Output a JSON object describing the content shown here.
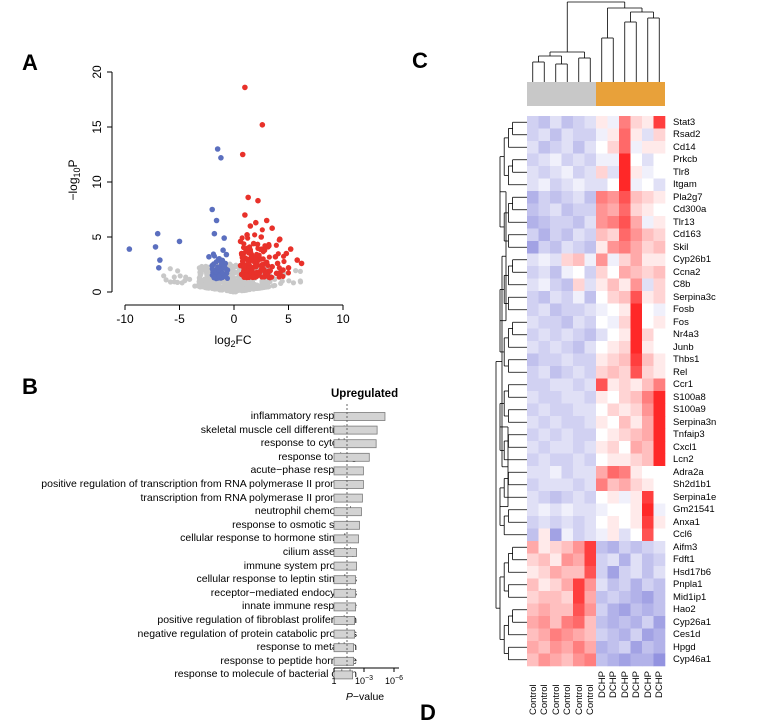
{
  "panels": {
    "a": "A",
    "b": "B",
    "c": "C",
    "d": "D"
  },
  "chart_data": [
    {
      "type": "scatter",
      "name": "volcano",
      "title": "",
      "xlabel": "log2FC",
      "ylabel": "−log10P",
      "xlim": [
        -10,
        10
      ],
      "ylim": [
        0,
        20
      ],
      "xticks": [
        -10,
        -5,
        0,
        5,
        10
      ],
      "yticks": [
        0,
        5,
        10,
        15,
        20
      ],
      "colors": {
        "down": "#5b6fbf",
        "up": "#e8312a",
        "ns": "#c8c8c8"
      },
      "series": [
        {
          "name": "up",
          "points": [
            [
              1.0,
              18.6
            ],
            [
              2.6,
              15.2
            ],
            [
              0.8,
              12.5
            ],
            [
              1.3,
              8.6
            ],
            [
              2.2,
              8.3
            ],
            [
              1.0,
              7.0
            ],
            [
              3.0,
              6.5
            ],
            [
              1.5,
              6.0
            ],
            [
              2.0,
              6.3
            ],
            [
              3.5,
              5.8
            ],
            [
              1.2,
              5.2
            ],
            [
              2.5,
              5.0
            ],
            [
              4.2,
              4.8
            ],
            [
              0.6,
              4.6
            ],
            [
              1.8,
              4.4
            ],
            [
              3.2,
              4.2
            ],
            [
              5.2,
              3.9
            ],
            [
              1.1,
              3.9
            ],
            [
              2.8,
              3.8
            ],
            [
              4.8,
              3.5
            ],
            [
              0.7,
              3.5
            ],
            [
              1.6,
              3.4
            ],
            [
              2.2,
              3.3
            ],
            [
              3.8,
              3.2
            ],
            [
              1.0,
              3.1
            ],
            [
              2.5,
              3.0
            ],
            [
              5.8,
              2.9
            ],
            [
              6.2,
              2.6
            ],
            [
              0.8,
              2.8
            ],
            [
              1.9,
              2.7
            ],
            [
              3.0,
              2.7
            ],
            [
              4.0,
              2.6
            ],
            [
              1.3,
              2.5
            ],
            [
              2.0,
              2.4
            ],
            [
              0.6,
              2.4
            ],
            [
              3.5,
              2.3
            ],
            [
              1.7,
              2.2
            ],
            [
              2.6,
              2.1
            ],
            [
              4.5,
              2.0
            ],
            [
              1.1,
              2.0
            ],
            [
              0.9,
              1.9
            ],
            [
              2.3,
              1.8
            ],
            [
              3.2,
              1.9
            ],
            [
              5.0,
              2.2
            ],
            [
              1.5,
              1.7
            ],
            [
              0.7,
              1.6
            ],
            [
              2.0,
              1.5
            ],
            [
              2.9,
              1.6
            ],
            [
              3.9,
              1.7
            ],
            [
              1.2,
              1.4
            ]
          ]
        },
        {
          "name": "down",
          "points": [
            [
              -1.5,
              13.0
            ],
            [
              -1.2,
              12.2
            ],
            [
              -9.6,
              3.9
            ],
            [
              -7.0,
              5.3
            ],
            [
              -7.2,
              4.1
            ],
            [
              -6.8,
              2.9
            ],
            [
              -6.9,
              2.2
            ],
            [
              -5.0,
              4.6
            ],
            [
              -2.0,
              7.5
            ],
            [
              -1.6,
              6.5
            ],
            [
              -1.8,
              5.3
            ],
            [
              -0.9,
              4.9
            ],
            [
              -1.0,
              3.8
            ],
            [
              -2.3,
              3.2
            ],
            [
              -0.7,
              3.4
            ],
            [
              -1.4,
              3.0
            ],
            [
              -0.8,
              2.6
            ],
            [
              -2.0,
              2.4
            ],
            [
              -1.2,
              2.2
            ],
            [
              -0.6,
              2.0
            ],
            [
              -1.5,
              1.8
            ],
            [
              -0.8,
              1.6
            ],
            [
              -1.1,
              1.5
            ]
          ]
        },
        {
          "name": "ns",
          "points": "cloud"
        }
      ]
    },
    {
      "type": "bar",
      "name": "go-enrichment",
      "title": "Upregulated",
      "xlabel": "P-value",
      "xticks": [
        "1",
        "10−3",
        "10−6"
      ],
      "threshold": 0.05,
      "categories": [
        "inflammatory response",
        "skeletal muscle cell differentiation",
        "response to cytokine",
        "response to drug",
        "acute−phase response",
        "positive regulation of transcription from RNA polymerase II promoter",
        "transcription from RNA polymerase II promoter",
        "neutrophil chemotaxis",
        "response to osmotic stress",
        "cellular response to hormone stimulus",
        "cilium assembly",
        "immune system process",
        "cellular response to leptin stimulus",
        "receptor−mediated endocytosis",
        "innate immune response",
        "positive regulation of fibroblast proliferation",
        "negative regulation of protein catabolic process",
        "response to metal ion",
        "response to peptide hormone",
        "response to molecule of bacterial origin"
      ],
      "values": [
        5.2,
        4.4,
        4.3,
        3.6,
        3.0,
        3.0,
        2.9,
        2.8,
        2.6,
        2.5,
        2.3,
        2.3,
        2.2,
        2.2,
        2.2,
        2.1,
        2.1,
        2.0,
        2.0,
        1.9
      ]
    },
    {
      "type": "heatmap",
      "name": "gene-heatmap",
      "samples": [
        "Control",
        "Control",
        "Control",
        "Control",
        "Control",
        "Control",
        "DCHP",
        "DCHP",
        "DCHP",
        "DCHP",
        "DCHP",
        "DCHP"
      ],
      "groups": [
        {
          "name": "Control",
          "color": "#c8c8c8"
        },
        {
          "name": "DCHP",
          "color": "#e8a13a"
        }
      ],
      "genes": [
        "Stat3",
        "Rsad2",
        "Cd14",
        "Prkcb",
        "Tlr8",
        "Itgam",
        "Pla2g7",
        "Cd300a",
        "Tlr13",
        "Cd163",
        "Skil",
        "Cyp26b1",
        "Ccna2",
        "C8b",
        "Serpina3c",
        "Fosb",
        "Fos",
        "Nr4a3",
        "Junb",
        "Thbs1",
        "Rel",
        "Ccr1",
        "S100a8",
        "S100a9",
        "Serpina3n",
        "Tnfaip3",
        "Cxcl1",
        "Lcn2",
        "Adra2a",
        "Sh2d1b1",
        "Serpina1e",
        "Gm21541",
        "Anxa1",
        "Ccl6",
        "Aifm3",
        "Fdft1",
        "Hsd17b6",
        "Pnpla1",
        "Mid1ip1",
        "Hao2",
        "Cyp26a1",
        "Ces1d",
        "Hpgd",
        "Cyp46a1"
      ],
      "values": [
        [
          -0.3,
          -0.4,
          -0.2,
          -0.4,
          -0.3,
          -0.2,
          0.1,
          -0.1,
          0.6,
          0.2,
          0.1,
          0.9
        ],
        [
          -0.3,
          -0.2,
          -0.4,
          -0.2,
          -0.3,
          -0.3,
          -0.1,
          0.1,
          0.7,
          0.1,
          -0.2,
          0.2
        ],
        [
          -0.2,
          -0.4,
          -0.3,
          -0.2,
          -0.4,
          -0.2,
          0.0,
          0.2,
          0.7,
          -0.1,
          0.1,
          0.1
        ],
        [
          -0.3,
          -0.2,
          -0.1,
          -0.3,
          -0.2,
          -0.3,
          -0.1,
          -0.1,
          1.0,
          0.0,
          -0.2,
          0.0
        ],
        [
          -0.2,
          -0.3,
          -0.2,
          -0.1,
          -0.3,
          -0.2,
          0.2,
          -0.2,
          1.0,
          0.1,
          -0.1,
          0.0
        ],
        [
          -0.2,
          -0.1,
          -0.3,
          -0.2,
          -0.1,
          -0.2,
          -0.2,
          0.0,
          1.0,
          -0.1,
          0.0,
          -0.2
        ],
        [
          -0.5,
          -0.3,
          -0.4,
          -0.3,
          -0.2,
          -0.4,
          0.6,
          0.5,
          0.8,
          0.3,
          0.2,
          0.1
        ],
        [
          -0.4,
          -0.3,
          -0.2,
          -0.4,
          -0.3,
          -0.3,
          0.5,
          0.4,
          0.7,
          0.2,
          0.1,
          0.0
        ],
        [
          -0.5,
          -0.4,
          -0.3,
          -0.3,
          -0.4,
          -0.2,
          0.5,
          0.6,
          0.8,
          0.4,
          -0.1,
          0.1
        ],
        [
          -0.3,
          -0.5,
          -0.3,
          -0.4,
          -0.2,
          -0.3,
          0.3,
          0.2,
          0.7,
          0.5,
          0.3,
          0.2
        ],
        [
          -0.6,
          -0.3,
          -0.4,
          -0.2,
          -0.3,
          -0.4,
          0.1,
          0.5,
          0.6,
          0.4,
          0.2,
          0.3
        ],
        [
          -0.2,
          -0.1,
          -0.2,
          0.2,
          0.3,
          -0.1,
          0.5,
          -0.1,
          0.2,
          0.4,
          0.1,
          0.1
        ],
        [
          -0.3,
          -0.2,
          -0.4,
          -0.1,
          0.0,
          -0.3,
          0.2,
          0.0,
          0.4,
          0.3,
          0.2,
          0.3
        ],
        [
          -0.2,
          -0.1,
          -0.3,
          -0.4,
          0.2,
          -0.2,
          0.1,
          0.3,
          0.1,
          0.5,
          -0.2,
          0.2
        ],
        [
          -0.3,
          -0.4,
          -0.2,
          -0.3,
          -0.1,
          -0.4,
          0.0,
          0.2,
          0.3,
          0.8,
          0.1,
          0.2
        ],
        [
          -0.3,
          -0.2,
          -0.4,
          -0.3,
          -0.3,
          -0.2,
          -0.1,
          0.0,
          0.1,
          1.0,
          0.0,
          -0.1
        ],
        [
          -0.2,
          -0.3,
          -0.3,
          -0.4,
          -0.2,
          -0.3,
          0.0,
          -0.1,
          0.2,
          1.0,
          0.0,
          0.1
        ],
        [
          -0.3,
          -0.2,
          -0.3,
          -0.2,
          -0.3,
          -0.4,
          -0.2,
          0.0,
          0.1,
          1.0,
          0.2,
          0.0
        ],
        [
          -0.2,
          -0.3,
          -0.2,
          -0.3,
          -0.4,
          -0.2,
          0.0,
          0.1,
          0.2,
          1.0,
          0.1,
          0.0
        ],
        [
          -0.4,
          -0.3,
          -0.3,
          -0.2,
          -0.3,
          -0.3,
          0.1,
          0.2,
          0.3,
          0.9,
          0.3,
          0.1
        ],
        [
          -0.3,
          -0.2,
          -0.4,
          -0.3,
          -0.2,
          -0.3,
          0.2,
          0.3,
          0.2,
          0.8,
          0.2,
          0.1
        ],
        [
          -0.3,
          -0.3,
          -0.2,
          -0.2,
          -0.3,
          -0.2,
          0.8,
          0.1,
          0.2,
          0.1,
          0.3,
          0.6
        ],
        [
          -0.2,
          -0.3,
          -0.3,
          -0.2,
          -0.2,
          -0.3,
          0.1,
          0.0,
          0.2,
          0.3,
          0.6,
          1.0
        ],
        [
          -0.3,
          -0.2,
          -0.3,
          -0.3,
          -0.2,
          -0.2,
          0.0,
          0.2,
          0.1,
          0.2,
          0.5,
          1.0
        ],
        [
          -0.2,
          -0.3,
          -0.2,
          -0.3,
          -0.3,
          -0.2,
          0.1,
          0.0,
          0.3,
          0.1,
          0.4,
          1.0
        ],
        [
          -0.3,
          -0.2,
          -0.3,
          -0.2,
          -0.3,
          -0.3,
          0.0,
          0.1,
          0.2,
          0.3,
          0.4,
          1.0
        ],
        [
          -0.2,
          -0.3,
          -0.2,
          -0.2,
          -0.3,
          -0.2,
          0.1,
          0.2,
          0.0,
          0.4,
          0.3,
          1.0
        ],
        [
          -0.3,
          -0.2,
          -0.3,
          -0.3,
          -0.2,
          -0.3,
          0.0,
          0.1,
          0.1,
          0.2,
          0.3,
          1.0
        ],
        [
          -0.2,
          -0.2,
          -0.1,
          -0.3,
          -0.2,
          -0.2,
          0.4,
          0.7,
          0.6,
          0.1,
          0.0,
          0.0
        ],
        [
          -0.3,
          -0.2,
          -0.2,
          -0.2,
          -0.3,
          -0.2,
          0.6,
          0.3,
          0.4,
          0.2,
          0.1,
          0.0
        ],
        [
          -0.2,
          -0.3,
          -0.4,
          -0.3,
          -0.2,
          -0.3,
          0.0,
          0.1,
          -0.1,
          0.1,
          0.9,
          0.0
        ],
        [
          -0.2,
          -0.1,
          -0.2,
          -0.1,
          -0.2,
          -0.2,
          -0.1,
          0.0,
          0.0,
          0.1,
          1.0,
          -0.1
        ],
        [
          -0.3,
          -0.2,
          -0.3,
          -0.2,
          -0.3,
          -0.2,
          0.0,
          0.1,
          0.0,
          0.1,
          0.9,
          0.1
        ],
        [
          -0.4,
          0.1,
          -0.6,
          -0.1,
          -0.3,
          -0.2,
          -0.1,
          0.1,
          -0.2,
          0.0,
          0.8,
          0.0
        ],
        [
          0.4,
          0.1,
          0.2,
          0.3,
          0.5,
          0.9,
          -0.4,
          -0.5,
          -0.3,
          -0.4,
          -0.3,
          -0.2
        ],
        [
          0.2,
          0.3,
          0.1,
          0.5,
          0.4,
          0.9,
          -0.3,
          -0.2,
          -0.5,
          -0.2,
          -0.4,
          -0.3
        ],
        [
          0.1,
          0.2,
          0.4,
          0.3,
          0.3,
          0.8,
          -0.3,
          -0.6,
          -0.3,
          -0.2,
          -0.4,
          -0.2
        ],
        [
          0.3,
          0.1,
          0.2,
          0.4,
          0.9,
          0.5,
          -0.2,
          -0.4,
          -0.3,
          -0.5,
          -0.3,
          -0.4
        ],
        [
          0.2,
          0.3,
          0.3,
          0.2,
          0.9,
          0.4,
          -0.4,
          -0.3,
          -0.4,
          -0.5,
          -0.6,
          -0.4
        ],
        [
          0.3,
          0.4,
          0.3,
          0.3,
          0.8,
          0.5,
          -0.3,
          -0.5,
          -0.6,
          -0.4,
          -0.5,
          -0.4
        ],
        [
          0.4,
          0.5,
          0.3,
          0.6,
          0.7,
          0.3,
          -0.4,
          -0.5,
          -0.4,
          -0.5,
          -0.3,
          -0.6
        ],
        [
          0.3,
          0.4,
          0.6,
          0.5,
          0.4,
          0.3,
          -0.3,
          -0.4,
          -0.5,
          -0.3,
          -0.6,
          -0.5
        ],
        [
          0.4,
          0.3,
          0.5,
          0.4,
          0.6,
          0.4,
          -0.5,
          -0.4,
          -0.3,
          -0.6,
          -0.4,
          -0.5
        ],
        [
          0.3,
          0.5,
          0.4,
          0.3,
          0.5,
          0.6,
          -0.4,
          -0.5,
          -0.6,
          -0.5,
          -0.5,
          -0.7
        ]
      ]
    }
  ]
}
